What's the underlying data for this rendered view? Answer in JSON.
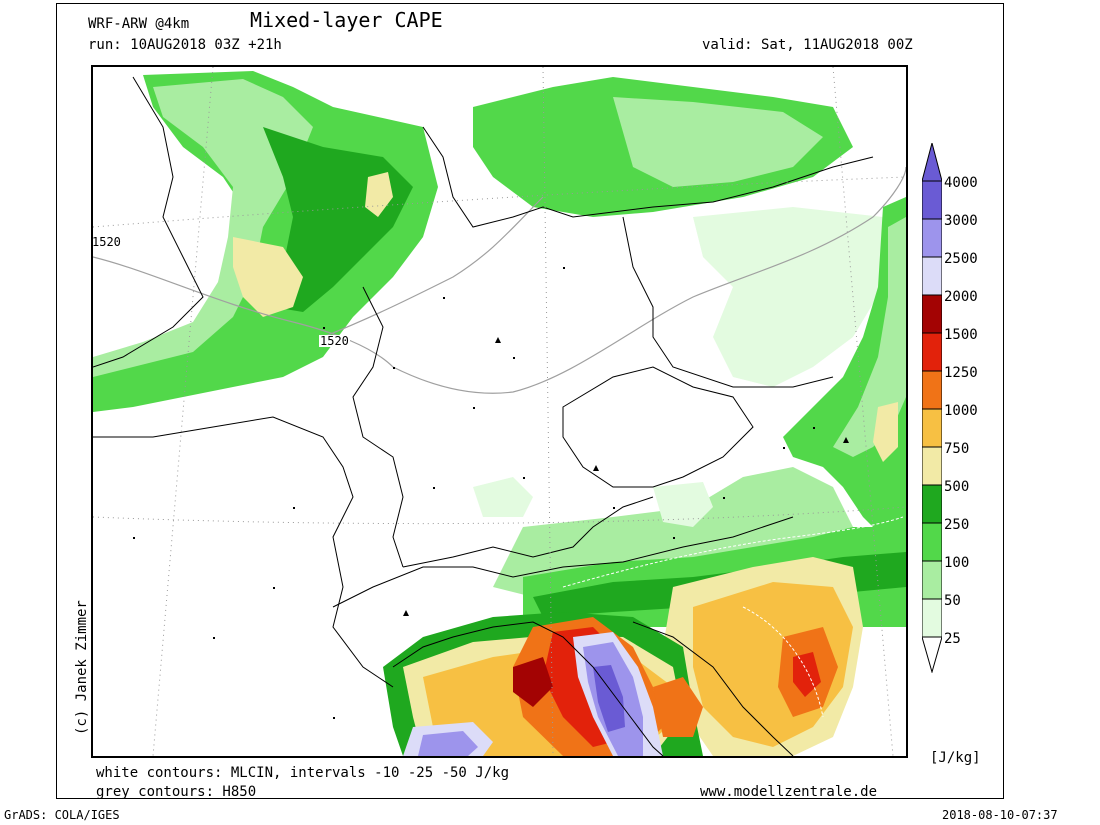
{
  "header": {
    "model": "WRF-ARW @4km",
    "title": "Mixed-layer CAPE",
    "run": "run: 10AUG2018 03Z +21h",
    "valid": "valid: Sat, 11AUG2018 00Z"
  },
  "footer": {
    "white_contours": "white contours: MLCIN, intervals -10 -25 -50 J/kg",
    "grey_contours": "grey contours: H850",
    "website": "www.modellzentrale.de",
    "software": "GrADS: COLA/IGES",
    "timestamp": "2018-08-10-07:37"
  },
  "copyright": "(c) Janek Zimmer",
  "map": {
    "contour_labels": [
      "1520",
      "1520"
    ],
    "colors": {
      "c25": "#e3fbe0",
      "c50": "#a9eda1",
      "c100": "#52d84a",
      "c250": "#1fa81f",
      "c500": "#f2eaa6",
      "c750": "#f7c043",
      "c1000": "#f07317",
      "c1250": "#e2220b",
      "c1500": "#a30303",
      "c2500": "#dcdcf8",
      "c3000": "#9d94ec",
      "c4000": "#6a5bd4"
    }
  },
  "colorbar": {
    "unit": "[J/kg]",
    "levels": [
      "4000",
      "3000",
      "2500",
      "2000",
      "1500",
      "1250",
      "1000",
      "750",
      "500",
      "250",
      "100",
      "50",
      "25"
    ],
    "colors": [
      "#6a5bd4",
      "#9d94ec",
      "#dcdcf8",
      "#a30303",
      "#e2220b",
      "#f07317",
      "#f7c043",
      "#f2eaa6",
      "#1fa81f",
      "#52d84a",
      "#a9eda1",
      "#e3fbe0"
    ]
  }
}
